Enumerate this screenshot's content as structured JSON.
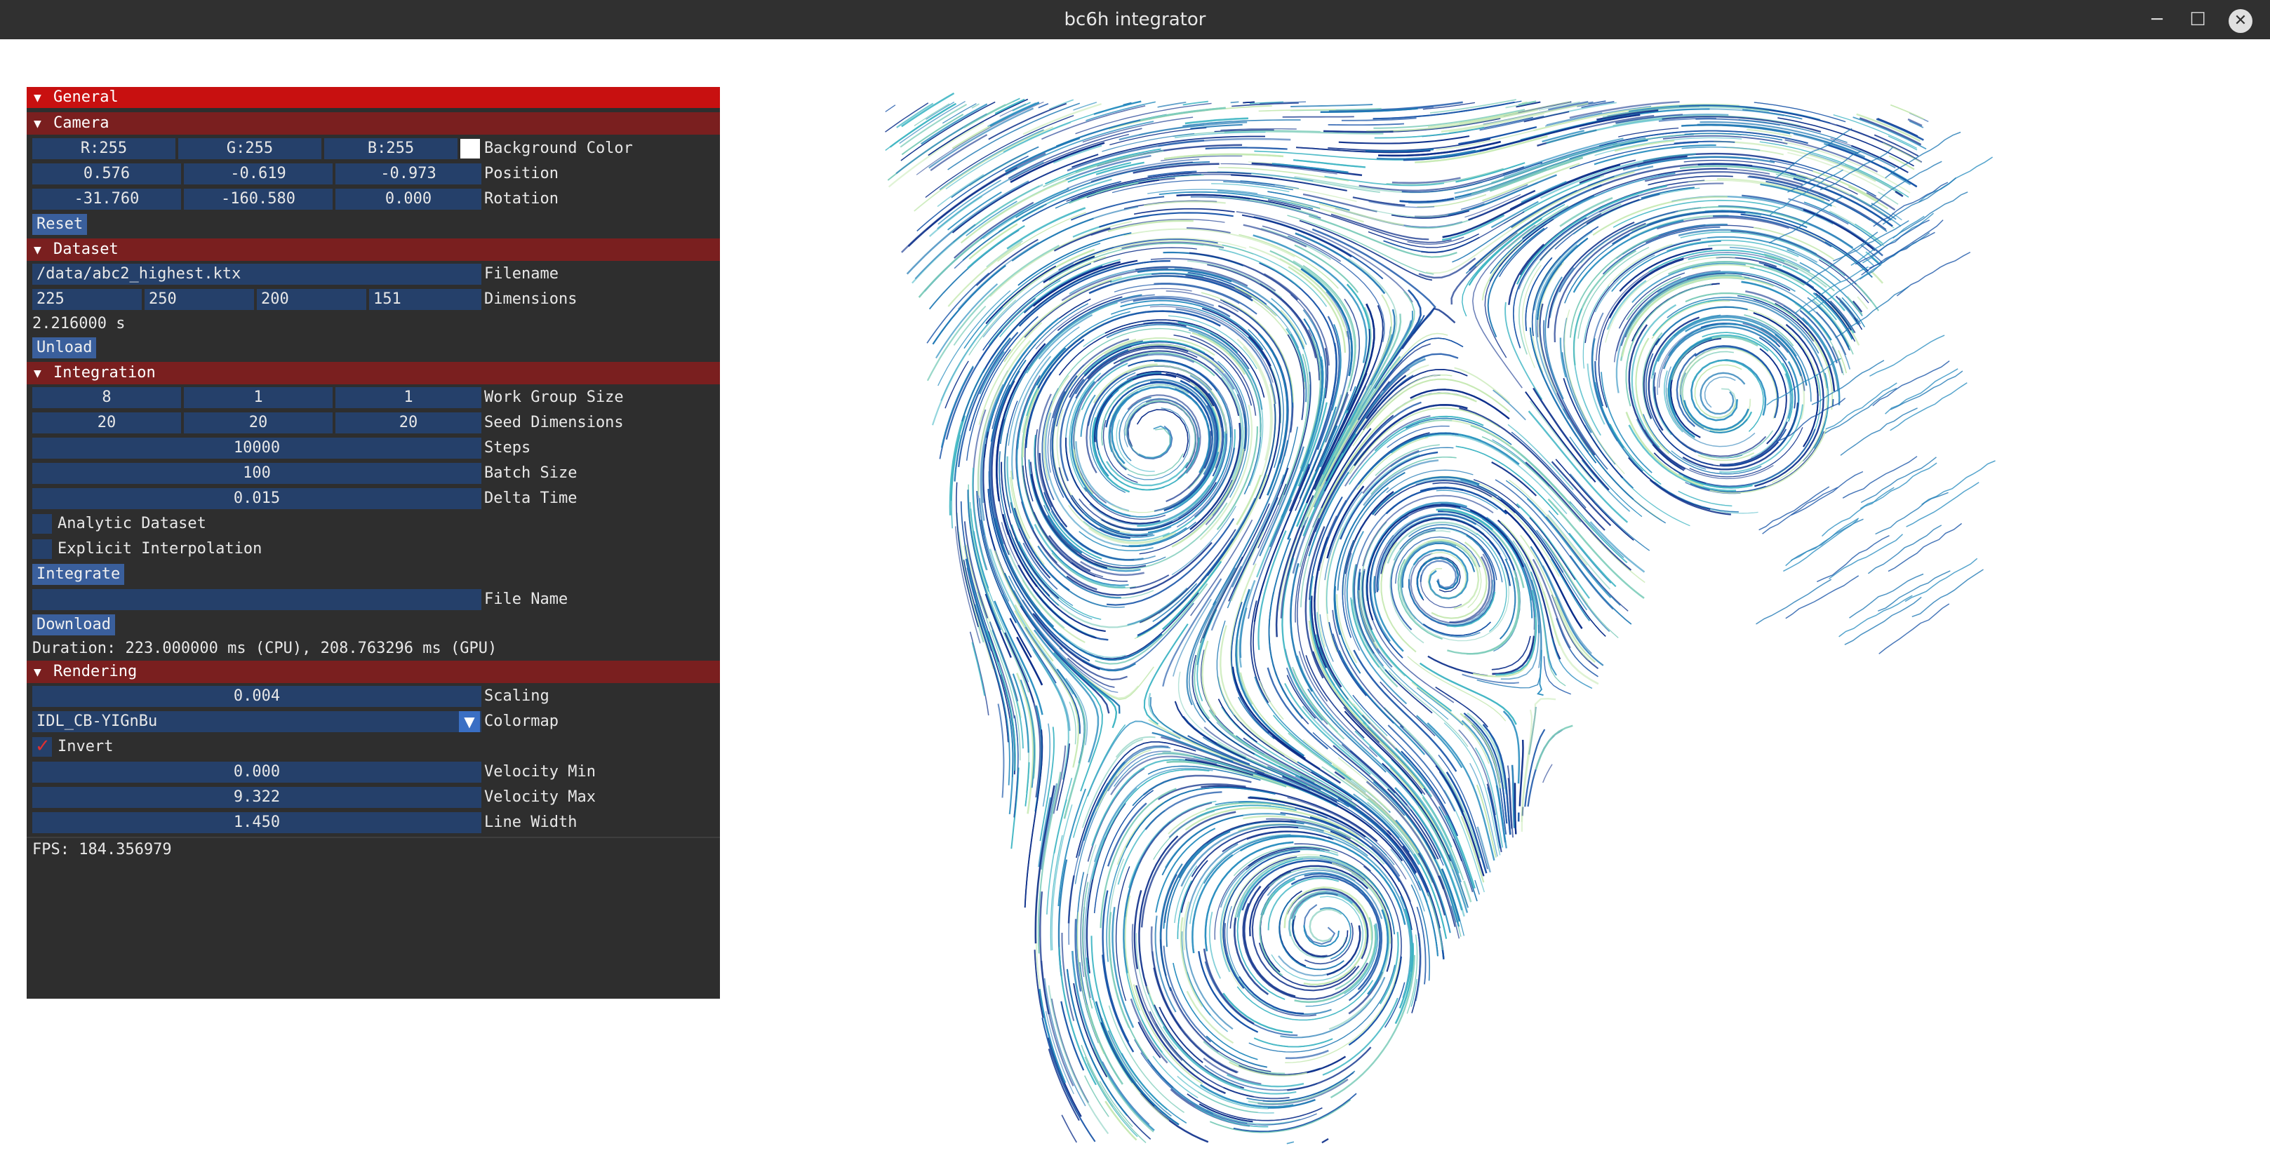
{
  "window": {
    "title": "bc6h integrator"
  },
  "panel": {
    "general_header": "General",
    "camera": {
      "header": "Camera",
      "background_color": {
        "r": "R:255",
        "g": "G:255",
        "b": "B:255",
        "label": "Background Color",
        "swatch": "#ffffff"
      },
      "position": {
        "x": "0.576",
        "y": "-0.619",
        "z": "-0.973",
        "label": "Position"
      },
      "rotation": {
        "x": "-31.760",
        "y": "-160.580",
        "z": "0.000",
        "label": "Rotation"
      },
      "reset_label": "Reset"
    },
    "dataset": {
      "header": "Dataset",
      "filename_value": "/data/abc2_highest.ktx",
      "filename_label": "Filename",
      "dimensions": {
        "x": "225",
        "y": "250",
        "z": "200",
        "t": "151",
        "label": "Dimensions"
      },
      "load_time": "2.216000 s",
      "unload_label": "Unload"
    },
    "integration": {
      "header": "Integration",
      "work_group_size": {
        "x": "8",
        "y": "1",
        "z": "1",
        "label": "Work Group Size"
      },
      "seed_dimensions": {
        "x": "20",
        "y": "20",
        "z": "20",
        "label": "Seed Dimensions"
      },
      "steps": {
        "value": "10000",
        "label": "Steps"
      },
      "batch_size": {
        "value": "100",
        "label": "Batch Size"
      },
      "delta_time": {
        "value": "0.015",
        "label": "Delta Time"
      },
      "analytic_dataset": {
        "label": "Analytic Dataset",
        "checked": false
      },
      "explicit_interpolation": {
        "label": "Explicit Interpolation",
        "checked": false
      },
      "integrate_label": "Integrate",
      "file_name": {
        "value": "",
        "label": "File Name"
      },
      "download_label": "Download",
      "duration": "Duration: 223.000000 ms (CPU), 208.763296 ms (GPU)"
    },
    "rendering": {
      "header": "Rendering",
      "scaling": {
        "value": "0.004",
        "label": "Scaling"
      },
      "colormap": {
        "value": "IDL_CB-YIGnBu",
        "label": "Colormap"
      },
      "invert": {
        "label": "Invert",
        "checked": true
      },
      "velocity_min": {
        "value": "0.000",
        "label": "Velocity Min"
      },
      "velocity_max": {
        "value": "9.322",
        "label": "Velocity Max"
      },
      "line_width": {
        "value": "1.450",
        "label": "Line Width"
      }
    },
    "fps": "FPS: 184.356979"
  },
  "viewport": {
    "colors": [
      "#0d2f8a",
      "#1a55a8",
      "#1f78b4",
      "#2c8fc0",
      "#41b6c4",
      "#7fcdbb",
      "#c7e9b4"
    ]
  }
}
